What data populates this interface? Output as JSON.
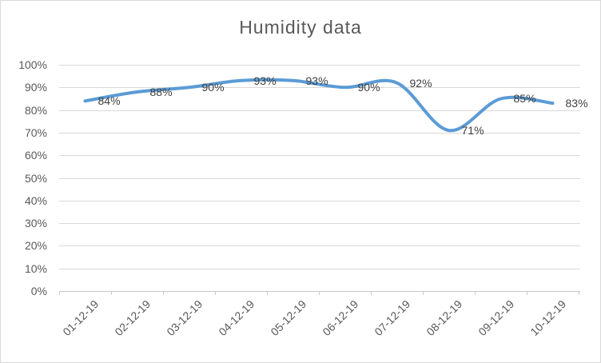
{
  "chart_data": {
    "type": "line",
    "title": "Humidity data",
    "categories": [
      "01-12-19",
      "02-12-19",
      "03-12-19",
      "04-12-19",
      "05-12-19",
      "06-12-19",
      "07-12-19",
      "08-12-19",
      "09-12-19",
      "10-12-19"
    ],
    "values": [
      84,
      88,
      90,
      93,
      93,
      90,
      92,
      71,
      85,
      83
    ],
    "data_labels": [
      "84%",
      "88%",
      "90%",
      "93%",
      "93%",
      "90%",
      "92%",
      "71%",
      "85%",
      "83%"
    ],
    "y_axis": {
      "ticks": [
        "0%",
        "10%",
        "20%",
        "30%",
        "40%",
        "50%",
        "60%",
        "70%",
        "80%",
        "90%",
        "100%"
      ],
      "min": 0,
      "max": 100
    },
    "xlabel": "",
    "ylabel": "",
    "grid": true,
    "legend": "none",
    "smooth": true,
    "colors": {
      "line": "#5B9BD5",
      "gridline": "#D9D9D9",
      "axis": "#C8C8C8",
      "axis_text": "#595959",
      "title_text": "#595959",
      "data_label_text": "#404040",
      "background": "#FFFFFF",
      "border": "#D9D9D9"
    }
  }
}
